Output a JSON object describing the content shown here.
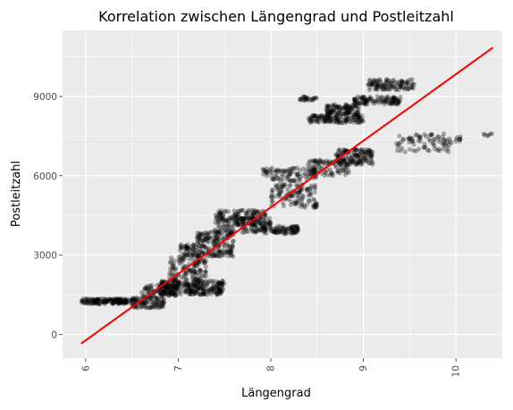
{
  "chart_data": {
    "type": "scatter",
    "title": "Korrelation zwischen Längengrad und Postleitzahl",
    "xlabel": "Längengrad",
    "ylabel": "Postleitzahl",
    "xlim": [
      5.75,
      10.5
    ],
    "ylim": [
      -900,
      11500
    ],
    "x_ticks": [
      6,
      7,
      8,
      9,
      10
    ],
    "x_tick_labels": [
      "6",
      "7",
      "8",
      "9",
      "10"
    ],
    "y_ticks": [
      0,
      3000,
      6000,
      9000
    ],
    "y_tick_labels": [
      "0",
      "3000",
      "6000",
      "9000"
    ],
    "x_tick_rotation_deg": 90,
    "grid": true,
    "point_color": "#000000",
    "point_alpha": 0.3,
    "panel_background": "#ebebeb",
    "grid_color": "#ffffff",
    "clusters": [
      {
        "x": [
          5.95,
          6.55
        ],
        "y": [
          1150,
          1350
        ],
        "n": 160
      },
      {
        "x": [
          6.5,
          6.85
        ],
        "y": [
          1000,
          1450
        ],
        "n": 100
      },
      {
        "x": [
          6.6,
          7.0
        ],
        "y": [
          1450,
          1900
        ],
        "n": 80
      },
      {
        "x": [
          6.8,
          7.5
        ],
        "y": [
          1500,
          2050
        ],
        "n": 280
      },
      {
        "x": [
          6.9,
          7.3
        ],
        "y": [
          2050,
          2950
        ],
        "n": 120
      },
      {
        "x": [
          7.0,
          7.6
        ],
        "y": [
          2950,
          3400
        ],
        "n": 140
      },
      {
        "x": [
          7.2,
          7.6
        ],
        "y": [
          3400,
          3900
        ],
        "n": 90
      },
      {
        "x": [
          7.4,
          7.95
        ],
        "y": [
          3850,
          4700
        ],
        "n": 190
      },
      {
        "x": [
          7.6,
          8.0
        ],
        "y": [
          4100,
          4400
        ],
        "n": 60
      },
      {
        "x": [
          7.9,
          8.3
        ],
        "y": [
          3800,
          4100
        ],
        "n": 90
      },
      {
        "x": [
          8.0,
          8.5
        ],
        "y": [
          4800,
          5700
        ],
        "n": 120
      },
      {
        "x": [
          7.9,
          8.5
        ],
        "y": [
          5800,
          6300
        ],
        "n": 90
      },
      {
        "x": [
          8.4,
          8.85
        ],
        "y": [
          6000,
          6600
        ],
        "n": 90
      },
      {
        "x": [
          8.7,
          9.1
        ],
        "y": [
          6400,
          7000
        ],
        "n": 150
      },
      {
        "x": [
          8.4,
          9.0
        ],
        "y": [
          8000,
          8300
        ],
        "n": 130
      },
      {
        "x": [
          8.6,
          8.95
        ],
        "y": [
          8300,
          8700
        ],
        "n": 110
      },
      {
        "x": [
          8.9,
          9.4
        ],
        "y": [
          8700,
          9000
        ],
        "n": 110
      },
      {
        "x": [
          9.05,
          9.55
        ],
        "y": [
          9250,
          9650
        ],
        "n": 110
      },
      {
        "x": [
          8.3,
          8.5
        ],
        "y": [
          8850,
          9000
        ],
        "n": 25
      },
      {
        "x": [
          9.35,
          9.95
        ],
        "y": [
          6900,
          7600
        ],
        "n": 80
      },
      {
        "x": [
          10.0,
          10.05
        ],
        "y": [
          7300,
          7500
        ],
        "n": 8
      },
      {
        "x": [
          10.3,
          10.4
        ],
        "y": [
          7500,
          7600
        ],
        "n": 6
      }
    ],
    "regression_line": {
      "color": "#ff0000",
      "x": [
        5.95,
        10.4
      ],
      "y": [
        -350,
        10850
      ]
    }
  }
}
